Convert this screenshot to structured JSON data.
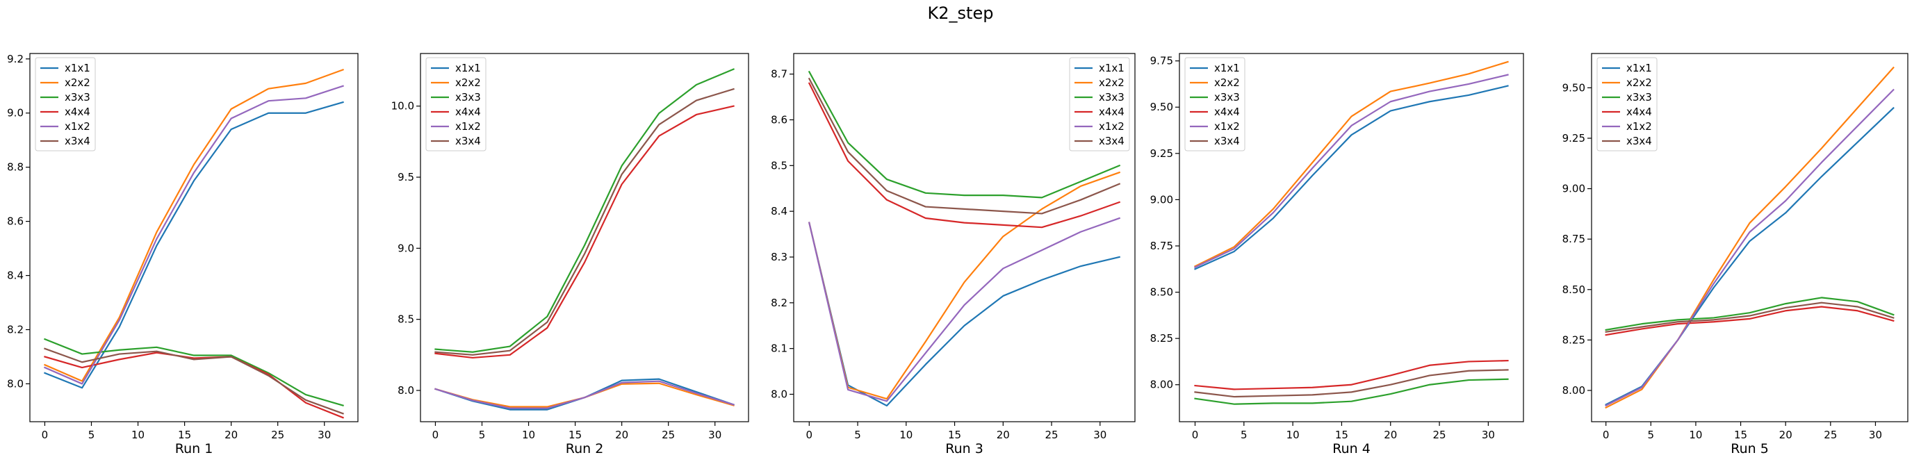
{
  "figure": {
    "title": "K2_step"
  },
  "chart_data": [
    {
      "type": "line",
      "xlabel": "Run 1",
      "x": [
        0,
        4,
        8,
        12,
        16,
        20,
        24,
        28,
        32
      ],
      "xticks": [
        0,
        5,
        10,
        15,
        20,
        25,
        30
      ],
      "xlim": [
        -1.6,
        33.6
      ],
      "ylim": [
        7.86,
        9.22
      ],
      "yticks": [
        8.0,
        8.2,
        8.4,
        8.6,
        8.8,
        9.0,
        9.2
      ],
      "ytick_labels": [
        "8.0",
        "8.2",
        "8.4",
        "8.6",
        "8.8",
        "9.0",
        "9.2"
      ],
      "legend": "upper left",
      "series": [
        {
          "name": "x1x1",
          "color": "#1f77b4",
          "values": [
            8.04,
            7.985,
            8.21,
            8.51,
            8.75,
            8.94,
            9.0,
            9.0,
            9.04
          ]
        },
        {
          "name": "x2x2",
          "color": "#ff7f0e",
          "values": [
            8.07,
            8.01,
            8.245,
            8.56,
            8.81,
            9.015,
            9.09,
            9.11,
            9.16
          ]
        },
        {
          "name": "x3x3",
          "color": "#2ca02c",
          "values": [
            8.165,
            8.11,
            8.125,
            8.135,
            8.105,
            8.105,
            8.04,
            7.96,
            7.92
          ]
        },
        {
          "name": "x4x4",
          "color": "#d62728",
          "values": [
            8.1,
            8.06,
            8.09,
            8.115,
            8.095,
            8.1,
            8.035,
            7.93,
            7.875
          ]
        },
        {
          "name": "x1x2",
          "color": "#9467bd",
          "values": [
            8.06,
            8.0,
            8.235,
            8.535,
            8.78,
            8.98,
            9.045,
            9.055,
            9.1
          ]
        },
        {
          "name": "x3x4",
          "color": "#8c564b",
          "values": [
            8.13,
            8.08,
            8.11,
            8.12,
            8.09,
            8.1,
            8.03,
            7.94,
            7.89
          ]
        }
      ]
    },
    {
      "type": "line",
      "xlabel": "Run 2",
      "x": [
        0,
        4,
        8,
        12,
        16,
        20,
        24,
        28,
        32
      ],
      "xticks": [
        0,
        5,
        10,
        15,
        20,
        25,
        30
      ],
      "xlim": [
        -1.6,
        33.6
      ],
      "ylim": [
        7.78,
        10.37
      ],
      "yticks": [
        8.0,
        8.5,
        9.0,
        9.5,
        10.0
      ],
      "ytick_labels": [
        "8.0",
        "8.5",
        "9.0",
        "9.5",
        "10.0"
      ],
      "legend": "upper left",
      "series": [
        {
          "name": "x1x1",
          "color": "#1f77b4",
          "values": [
            8.01,
            7.925,
            7.865,
            7.865,
            7.95,
            8.07,
            8.08,
            7.99,
            7.9
          ]
        },
        {
          "name": "x2x2",
          "color": "#ff7f0e",
          "values": [
            8.01,
            7.935,
            7.885,
            7.885,
            7.95,
            8.045,
            8.05,
            7.97,
            7.895
          ]
        },
        {
          "name": "x3x3",
          "color": "#2ca02c",
          "values": [
            8.29,
            8.27,
            8.31,
            8.52,
            9.02,
            9.58,
            9.95,
            10.15,
            10.26
          ]
        },
        {
          "name": "x4x4",
          "color": "#d62728",
          "values": [
            8.26,
            8.23,
            8.25,
            8.44,
            8.9,
            9.45,
            9.79,
            9.94,
            10.0
          ]
        },
        {
          "name": "x1x2",
          "color": "#9467bd",
          "values": [
            8.01,
            7.93,
            7.875,
            7.875,
            7.95,
            8.055,
            8.065,
            7.98,
            7.9
          ]
        },
        {
          "name": "x3x4",
          "color": "#8c564b",
          "values": [
            8.27,
            8.25,
            8.28,
            8.48,
            8.96,
            9.52,
            9.87,
            10.04,
            10.12
          ]
        }
      ]
    },
    {
      "type": "line",
      "xlabel": "Run 3",
      "x": [
        0,
        4,
        8,
        12,
        16,
        20,
        24,
        28,
        32
      ],
      "xticks": [
        0,
        5,
        10,
        15,
        20,
        25,
        30
      ],
      "xlim": [
        -1.6,
        33.6
      ],
      "ylim": [
        7.94,
        8.745
      ],
      "yticks": [
        8.0,
        8.1,
        8.2,
        8.3,
        8.4,
        8.5,
        8.6,
        8.7
      ],
      "ytick_labels": [
        "8.0",
        "8.1",
        "8.2",
        "8.3",
        "8.4",
        "8.5",
        "8.6",
        "8.7"
      ],
      "legend": "upper right",
      "series": [
        {
          "name": "x1x1",
          "color": "#1f77b4",
          "values": [
            8.375,
            8.02,
            7.975,
            8.065,
            8.15,
            8.215,
            8.25,
            8.28,
            8.3
          ]
        },
        {
          "name": "x2x2",
          "color": "#ff7f0e",
          "values": [
            8.375,
            8.015,
            7.99,
            8.115,
            8.245,
            8.345,
            8.405,
            8.455,
            8.485
          ]
        },
        {
          "name": "x3x3",
          "color": "#2ca02c",
          "values": [
            8.705,
            8.55,
            8.47,
            8.44,
            8.435,
            8.435,
            8.43,
            8.465,
            8.5
          ]
        },
        {
          "name": "x4x4",
          "color": "#d62728",
          "values": [
            8.68,
            8.51,
            8.425,
            8.385,
            8.375,
            8.37,
            8.365,
            8.39,
            8.42
          ]
        },
        {
          "name": "x1x2",
          "color": "#9467bd",
          "values": [
            8.375,
            8.01,
            7.985,
            8.09,
            8.195,
            8.275,
            8.315,
            8.355,
            8.385
          ]
        },
        {
          "name": "x3x4",
          "color": "#8c564b",
          "values": [
            8.69,
            8.53,
            8.445,
            8.41,
            8.405,
            8.4,
            8.395,
            8.425,
            8.46
          ]
        }
      ]
    },
    {
      "type": "line",
      "xlabel": "Run 4",
      "x": [
        0,
        4,
        8,
        12,
        16,
        20,
        24,
        28,
        32
      ],
      "xticks": [
        0,
        5,
        10,
        15,
        20,
        25,
        30
      ],
      "xlim": [
        -1.6,
        33.6
      ],
      "ylim": [
        7.8,
        9.79
      ],
      "yticks": [
        8.0,
        8.25,
        8.5,
        8.75,
        9.0,
        9.25,
        9.5,
        9.75
      ],
      "ytick_labels": [
        "8.00",
        "8.25",
        "8.50",
        "8.75",
        "9.00",
        "9.25",
        "9.50",
        "9.75"
      ],
      "legend": "upper left",
      "series": [
        {
          "name": "x1x1",
          "color": "#1f77b4",
          "values": [
            8.625,
            8.72,
            8.9,
            9.13,
            9.35,
            9.48,
            9.53,
            9.565,
            9.615
          ]
        },
        {
          "name": "x2x2",
          "color": "#ff7f0e",
          "values": [
            8.64,
            8.745,
            8.95,
            9.2,
            9.45,
            9.585,
            9.63,
            9.68,
            9.745
          ]
        },
        {
          "name": "x3x3",
          "color": "#2ca02c",
          "values": [
            7.925,
            7.895,
            7.9,
            7.9,
            7.91,
            7.95,
            8.0,
            8.025,
            8.03
          ]
        },
        {
          "name": "x4x4",
          "color": "#d62728",
          "values": [
            7.995,
            7.975,
            7.98,
            7.985,
            8.0,
            8.05,
            8.105,
            8.125,
            8.13
          ]
        },
        {
          "name": "x1x2",
          "color": "#9467bd",
          "values": [
            8.635,
            8.735,
            8.93,
            9.17,
            9.4,
            9.53,
            9.585,
            9.625,
            9.675
          ]
        },
        {
          "name": "x3x4",
          "color": "#8c564b",
          "values": [
            7.96,
            7.935,
            7.94,
            7.945,
            7.96,
            8.0,
            8.05,
            8.075,
            8.08
          ]
        }
      ]
    },
    {
      "type": "line",
      "xlabel": "Run 5",
      "x": [
        0,
        4,
        8,
        12,
        16,
        20,
        24,
        28,
        32
      ],
      "xticks": [
        0,
        5,
        10,
        15,
        20,
        25,
        30
      ],
      "xlim": [
        -1.6,
        33.6
      ],
      "ylim": [
        7.845,
        9.67
      ],
      "yticks": [
        8.0,
        8.25,
        8.5,
        8.75,
        9.0,
        9.25,
        9.5
      ],
      "ytick_labels": [
        "8.00",
        "8.25",
        "8.50",
        "8.75",
        "9.00",
        "9.25",
        "9.50"
      ],
      "legend": "upper left",
      "series": [
        {
          "name": "x1x1",
          "color": "#1f77b4",
          "values": [
            7.93,
            8.02,
            8.25,
            8.51,
            8.74,
            8.88,
            9.06,
            9.23,
            9.4
          ]
        },
        {
          "name": "x2x2",
          "color": "#ff7f0e",
          "values": [
            7.915,
            8.005,
            8.25,
            8.55,
            8.83,
            9.01,
            9.2,
            9.4,
            9.6
          ]
        },
        {
          "name": "x3x3",
          "color": "#2ca02c",
          "values": [
            8.3,
            8.33,
            8.35,
            8.36,
            8.385,
            8.43,
            8.46,
            8.44,
            8.375
          ]
        },
        {
          "name": "x4x4",
          "color": "#d62728",
          "values": [
            8.275,
            8.305,
            8.33,
            8.34,
            8.355,
            8.395,
            8.415,
            8.395,
            8.345
          ]
        },
        {
          "name": "x1x2",
          "color": "#9467bd",
          "values": [
            7.925,
            8.015,
            8.25,
            8.53,
            8.785,
            8.94,
            9.13,
            9.31,
            9.49
          ]
        },
        {
          "name": "x3x4",
          "color": "#8c564b",
          "values": [
            8.29,
            8.315,
            8.34,
            8.35,
            8.37,
            8.41,
            8.435,
            8.415,
            8.36
          ]
        }
      ]
    }
  ]
}
